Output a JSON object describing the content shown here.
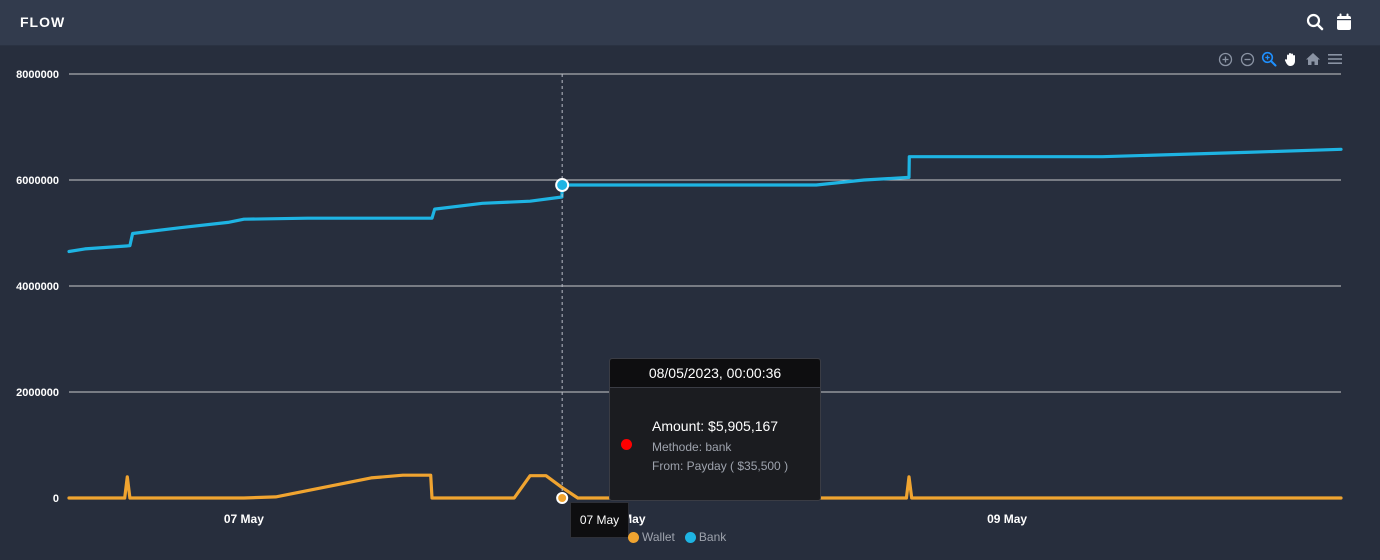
{
  "header": {
    "title": "FLOW",
    "icons": [
      "search-icon",
      "calendar-icon"
    ]
  },
  "toolbar": {
    "icons": [
      "zoom-in-icon",
      "zoom-out-icon",
      "selection-zoom-icon",
      "pan-icon",
      "reset-zoom-icon",
      "menu-icon"
    ]
  },
  "colors": {
    "background": "#272e3d",
    "header": "#323b4d",
    "wallet": "#f0a430",
    "bank": "#1eb4e3",
    "grid": "#e6e6e6",
    "accent_active": "#1e90ff",
    "tooltip_marker": "#ff0000"
  },
  "tooltip": {
    "title": "08/05/2023, 00:00:36",
    "amount": "Amount: $5,905,167",
    "method": "Methode: bank",
    "from": "From: Payday ( $35,500 )"
  },
  "crosshair_label": "07 May",
  "chart_data": {
    "type": "line",
    "x_axis": {
      "type": "datetime",
      "range": [
        "2023-05-06 13:00",
        "2023-05-09 21:00"
      ],
      "tick_labels": [
        {
          "date": "2023-05-07 00:00",
          "label": "07 May"
        },
        {
          "date": "2023-05-08 00:00",
          "label": "08 May"
        },
        {
          "date": "2023-05-09 00:00",
          "label": "09 May"
        }
      ]
    },
    "y_axis": {
      "ylim": [
        0,
        8000000
      ],
      "ticks": [
        {
          "value": 0,
          "label": "0"
        },
        {
          "value": 2000000,
          "label": "2000000"
        },
        {
          "value": 4000000,
          "label": "4000000"
        },
        {
          "value": 6000000,
          "label": "6000000"
        },
        {
          "value": 8000000,
          "label": "8000000"
        }
      ]
    },
    "grid": true,
    "legend": "bottom",
    "series": [
      {
        "name": "Wallet",
        "color": "#f0a430",
        "points": [
          [
            "2023-05-06 13:00",
            0
          ],
          [
            "2023-05-06 16:30",
            0
          ],
          [
            "2023-05-06 16:40",
            400000
          ],
          [
            "2023-05-06 16:50",
            0
          ],
          [
            "2023-05-07 00:00",
            0
          ],
          [
            "2023-05-07 02:00",
            20000
          ],
          [
            "2023-05-07 05:00",
            200000
          ],
          [
            "2023-05-07 08:00",
            380000
          ],
          [
            "2023-05-07 10:00",
            430000
          ],
          [
            "2023-05-07 11:45",
            430000
          ],
          [
            "2023-05-07 11:50",
            0
          ],
          [
            "2023-05-07 17:00",
            0
          ],
          [
            "2023-05-07 18:00",
            420000
          ],
          [
            "2023-05-07 19:00",
            420000
          ],
          [
            "2023-05-07 20:00",
            200000
          ],
          [
            "2023-05-07 21:00",
            0
          ],
          [
            "2023-05-08 17:40",
            0
          ],
          [
            "2023-05-08 17:50",
            400000
          ],
          [
            "2023-05-08 18:00",
            0
          ],
          [
            "2023-05-09 21:00",
            0
          ]
        ]
      },
      {
        "name": "Bank",
        "color": "#1eb4e3",
        "points": [
          [
            "2023-05-06 13:00",
            4650000
          ],
          [
            "2023-05-06 14:00",
            4700000
          ],
          [
            "2023-05-06 16:50",
            4760000
          ],
          [
            "2023-05-06 17:00",
            4990000
          ],
          [
            "2023-05-06 20:00",
            5100000
          ],
          [
            "2023-05-06 23:00",
            5200000
          ],
          [
            "2023-05-07 00:00",
            5260000
          ],
          [
            "2023-05-07 04:00",
            5280000
          ],
          [
            "2023-05-07 11:50",
            5280000
          ],
          [
            "2023-05-07 12:00",
            5450000
          ],
          [
            "2023-05-07 15:00",
            5560000
          ],
          [
            "2023-05-07 18:00",
            5600000
          ],
          [
            "2023-05-07 20:00",
            5680000
          ],
          [
            "2023-05-07 20:01",
            5905167
          ],
          [
            "2023-05-08 12:00",
            5905167
          ],
          [
            "2023-05-08 15:00",
            6000000
          ],
          [
            "2023-05-08 17:50",
            6050000
          ],
          [
            "2023-05-08 17:51",
            6440000
          ],
          [
            "2023-05-09 06:00",
            6440000
          ],
          [
            "2023-05-09 15:00",
            6520000
          ],
          [
            "2023-05-09 21:00",
            6580000
          ]
        ]
      }
    ],
    "highlight": {
      "series": "Bank",
      "x": "2023-05-07 20:01",
      "y": 5905167
    }
  }
}
